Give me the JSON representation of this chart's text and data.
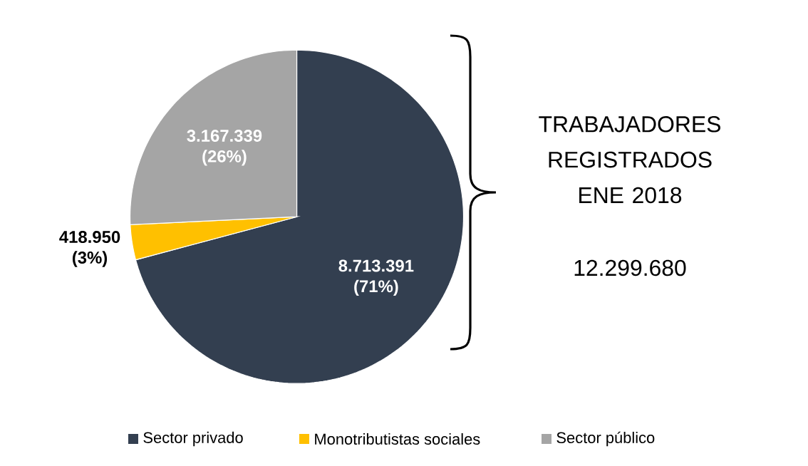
{
  "chart_data": {
    "type": "pie",
    "title": "TRABAJADORES REGISTRADOS ENE 2018",
    "annotations": [
      "12.299.680"
    ],
    "categories": [
      "Sector privado",
      "Monotributistas sociales",
      "Sector público"
    ],
    "values": [
      8713391,
      418950,
      3167339
    ],
    "colors": [
      "#333f50",
      "#ffc000",
      "#a5a5a5"
    ],
    "value_labels": [
      "8.713.391 (71%)",
      "418.950 (3%)",
      "3.167.339 (26%)"
    ],
    "legend": "bottom"
  }
}
